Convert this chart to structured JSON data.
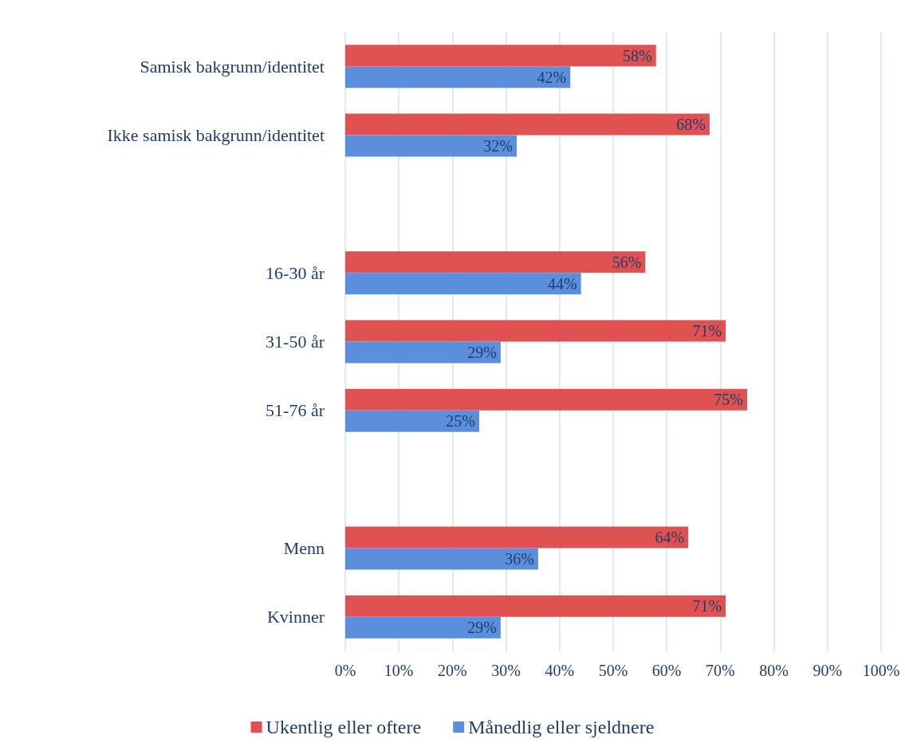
{
  "chart_data": {
    "type": "bar",
    "orientation": "horizontal",
    "categories": [
      "Samisk bakgrunn/identitet",
      "Ikke samisk bakgrunn/identitet",
      null,
      "16-30 år",
      "31-50 år",
      "51-76 år",
      null,
      "Menn",
      "Kvinner"
    ],
    "series": [
      {
        "name": "Ukentlig eller oftere",
        "color": "#e05252",
        "values": [
          58,
          68,
          null,
          56,
          71,
          75,
          null,
          64,
          71
        ],
        "value_labels": [
          "58%",
          "68%",
          null,
          "56%",
          "71%",
          "75%",
          null,
          "64%",
          "71%"
        ]
      },
      {
        "name": "Månedlig eller sjeldnere",
        "color": "#5b8fdc",
        "values": [
          42,
          32,
          null,
          44,
          29,
          25,
          null,
          36,
          29
        ],
        "value_labels": [
          "42%",
          "32%",
          null,
          "44%",
          "29%",
          "25%",
          null,
          "36%",
          "29%"
        ]
      }
    ],
    "xlim": [
      0,
      100
    ],
    "xticks": [
      {
        "value": 0,
        "label": "0%"
      },
      {
        "value": 10,
        "label": "10%"
      },
      {
        "value": 20,
        "label": "20%"
      },
      {
        "value": 30,
        "label": "30%"
      },
      {
        "value": 40,
        "label": "40%"
      },
      {
        "value": 50,
        "label": "50%"
      },
      {
        "value": 60,
        "label": "60%"
      },
      {
        "value": 70,
        "label": "70%"
      },
      {
        "value": 80,
        "label": "80%"
      },
      {
        "value": 90,
        "label": "90%"
      },
      {
        "value": 100,
        "label": "100%"
      }
    ],
    "grid": "x",
    "legend": "bottom"
  }
}
